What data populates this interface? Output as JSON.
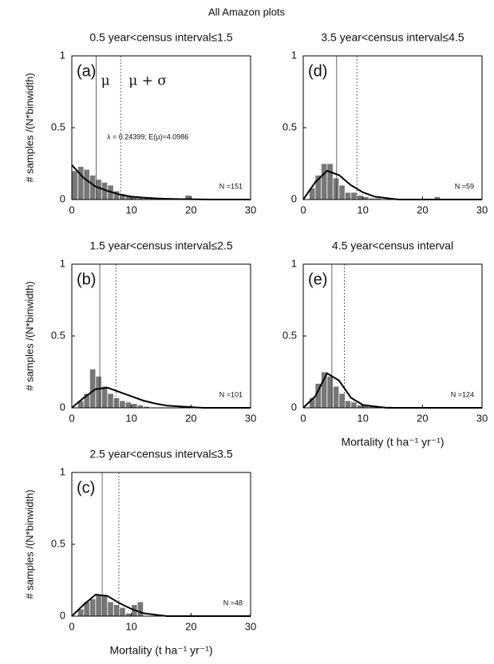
{
  "title": "All Amazon plots",
  "chart_data": [
    {
      "type": "histogram",
      "title": "0.5 year<census interval≤1.5",
      "ylabel": "# samples /(N*binwidth)",
      "panel_label": "(a)",
      "n_label": "N =151",
      "mean_label": "μ",
      "sd_label": "μ + σ",
      "fit_label": "λ = 0.24399; E(μ)=4.0986",
      "bins": [
        0,
        1,
        2,
        3,
        4,
        5,
        6,
        7,
        8,
        9,
        10,
        11,
        12,
        13,
        14,
        15,
        16,
        17,
        18,
        19,
        20,
        21
      ],
      "values": [
        0.2,
        0.23,
        0.21,
        0.17,
        0.14,
        0.12,
        0.1,
        0.06,
        0.04,
        0.03,
        0.02,
        0.02,
        0.01,
        0.01,
        0,
        0,
        0,
        0,
        0,
        0.03,
        0
      ],
      "color": "#777777",
      "fit": {
        "x": [
          0,
          2,
          4,
          6,
          8,
          10,
          12,
          14,
          16,
          18,
          20,
          22,
          24,
          26,
          28,
          30
        ],
        "values": [
          0.24,
          0.15,
          0.09,
          0.06,
          0.035,
          0.02,
          0.013,
          0.008,
          0.005,
          0.003,
          0.002,
          0.001,
          0,
          0,
          0,
          0
        ]
      },
      "mean": 4.1,
      "mean_plus_sd": 8.2,
      "xlim": [
        0,
        30
      ],
      "ylim": [
        0,
        1
      ],
      "xticks": [
        0,
        10,
        20,
        30
      ],
      "yticks": [
        0,
        0.5,
        1
      ]
    },
    {
      "type": "histogram",
      "title": "1.5 year<census interval≤2.5",
      "ylabel": "# samples /(N*binwidth)",
      "panel_label": "(b)",
      "n_label": "N =101",
      "bins": [
        0,
        1,
        2,
        3,
        4,
        5,
        6,
        7,
        8,
        9,
        10,
        11,
        12,
        13
      ],
      "values": [
        0,
        0.05,
        0.1,
        0.27,
        0.22,
        0.15,
        0.1,
        0.07,
        0.05,
        0.04,
        0.03,
        0.02,
        0.01
      ],
      "color": "#777777",
      "fit": {
        "x": [
          0,
          2,
          4,
          6,
          8,
          10,
          12,
          14,
          16,
          18,
          20,
          22,
          24,
          26,
          28,
          30
        ],
        "values": [
          0,
          0.07,
          0.13,
          0.14,
          0.11,
          0.08,
          0.05,
          0.03,
          0.015,
          0.01,
          0.005,
          0,
          0,
          0,
          0,
          0
        ]
      },
      "mean": 4.7,
      "mean_plus_sd": 7.4,
      "xlim": [
        0,
        30
      ],
      "ylim": [
        0,
        1
      ],
      "xticks": [
        0,
        10,
        20,
        30
      ],
      "yticks": [
        0,
        0.5,
        1
      ]
    },
    {
      "type": "histogram",
      "title": "2.5 year<census interval≤3.5",
      "ylabel": "# samples /(N*binwidth)",
      "xlabel": "Mortality (t ha⁻¹ yr⁻¹)",
      "panel_label": "(c)",
      "n_label": "N =48",
      "bins": [
        0,
        1,
        2,
        3,
        4,
        5,
        6,
        7,
        8,
        9,
        10,
        11,
        12
      ],
      "values": [
        0,
        0.05,
        0.1,
        0.12,
        0.15,
        0.15,
        0.1,
        0.08,
        0.06,
        0.02,
        0.08,
        0.1
      ],
      "color": "#777777",
      "fit": {
        "x": [
          0,
          2,
          4,
          6,
          8,
          10,
          12,
          14,
          16,
          18,
          20,
          22,
          24,
          26,
          28,
          30
        ],
        "values": [
          0,
          0.08,
          0.15,
          0.14,
          0.09,
          0.05,
          0.02,
          0.01,
          0,
          0,
          0,
          0,
          0,
          0,
          0,
          0
        ]
      },
      "mean": 5.1,
      "mean_plus_sd": 7.9,
      "xlim": [
        0,
        30
      ],
      "ylim": [
        0,
        1
      ],
      "xticks": [
        0,
        10,
        20,
        30
      ],
      "yticks": [
        0,
        0.5,
        1
      ]
    },
    {
      "type": "histogram",
      "title": "3.5 year<census interval≤4.5",
      "panel_label": "(d)",
      "n_label": "N =59",
      "bins": [
        0,
        1,
        2,
        3,
        4,
        5,
        6,
        7,
        8,
        9,
        10,
        11,
        12,
        13,
        14,
        15,
        16,
        17,
        18,
        19,
        20,
        21,
        22,
        23
      ],
      "values": [
        0,
        0.08,
        0.17,
        0.25,
        0.25,
        0.15,
        0.1,
        0.05,
        0.05,
        0.03,
        0.02,
        0.01,
        0.01,
        0,
        0,
        0,
        0,
        0,
        0,
        0,
        0,
        0,
        0.02
      ],
      "color": "#777777",
      "fit": {
        "x": [
          0,
          2,
          4,
          6,
          8,
          10,
          12,
          14,
          16,
          18,
          20,
          22,
          24,
          26,
          28,
          30
        ],
        "values": [
          0,
          0.12,
          0.2,
          0.17,
          0.1,
          0.05,
          0.02,
          0.01,
          0,
          0,
          0,
          0,
          0,
          0,
          0,
          0
        ]
      },
      "mean": 5.6,
      "mean_plus_sd": 9,
      "xlim": [
        0,
        30
      ],
      "ylim": [
        0,
        1
      ],
      "xticks": [
        0,
        10,
        20,
        30
      ],
      "yticks": [
        0,
        0.5,
        1
      ]
    },
    {
      "type": "histogram",
      "title": "4.5  year<census interval",
      "xlabel": "Mortality (t ha⁻¹ yr⁻¹)",
      "panel_label": "(e)",
      "n_label": "N =124",
      "bins": [
        0,
        1,
        2,
        3,
        4,
        5,
        6,
        7,
        8,
        9,
        10,
        11,
        12,
        13,
        14,
        15
      ],
      "values": [
        0,
        0.07,
        0.17,
        0.25,
        0.22,
        0.15,
        0.1,
        0.05,
        0.04,
        0.02,
        0.02,
        0.01,
        0.01,
        0.01,
        0.01
      ],
      "color": "#777777",
      "fit": {
        "x": [
          0,
          2,
          4,
          6,
          8,
          10,
          12,
          14,
          16,
          18,
          20,
          22,
          24,
          26,
          28,
          30
        ],
        "values": [
          0,
          0.08,
          0.24,
          0.19,
          0.07,
          0.02,
          0.01,
          0,
          0,
          0,
          0,
          0,
          0,
          0,
          0,
          0
        ]
      },
      "mean": 4.8,
      "mean_plus_sd": 6.9,
      "xlim": [
        0,
        30
      ],
      "ylim": [
        0,
        1
      ],
      "xticks": [
        0,
        10,
        20,
        30
      ],
      "yticks": [
        0,
        0.5,
        1
      ]
    }
  ]
}
